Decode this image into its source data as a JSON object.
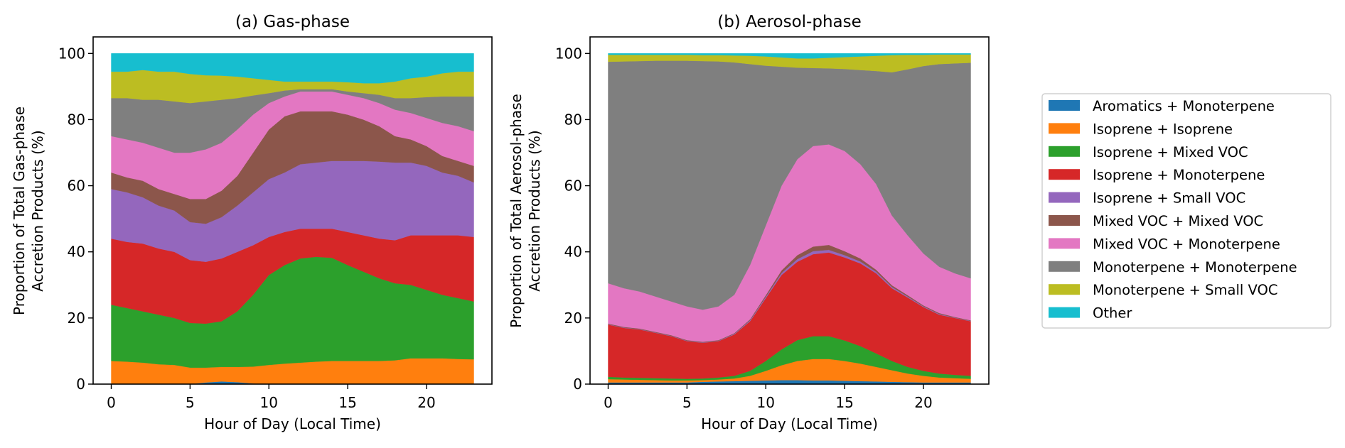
{
  "chart_data": [
    {
      "type": "area",
      "stacked": true,
      "title": "(a) Gas-phase",
      "xlabel": "Hour of Day (Local Time)",
      "ylabel": [
        "Proportion of Total Gas-phase",
        "Accretion Products (%)"
      ],
      "xlim": [
        -1.15,
        24.15
      ],
      "ylim": [
        0,
        105
      ],
      "xticks": [
        "0",
        "5",
        "10",
        "15",
        "20"
      ],
      "yticks": [
        "0",
        "20",
        "40",
        "60",
        "80",
        "100"
      ],
      "grid": false,
      "x": [
        0,
        1,
        2,
        3,
        4,
        5,
        6,
        7,
        8,
        9,
        10,
        11,
        12,
        13,
        14,
        15,
        16,
        17,
        18,
        19,
        20,
        21,
        22,
        23
      ],
      "series": [
        {
          "name": "Aromatics + Monoterpene",
          "values": [
            0,
            0,
            0,
            0,
            0,
            0,
            0.5,
            0.8,
            0.6,
            0.2,
            0,
            0,
            0,
            0,
            0,
            0,
            0,
            0,
            0,
            0,
            0,
            0,
            0,
            0
          ]
        },
        {
          "name": "Isoprene + Isoprene",
          "values": [
            7,
            6.8,
            6.5,
            6,
            5.8,
            5,
            4.5,
            4.4,
            4.6,
            5.1,
            5.8,
            6.2,
            6.5,
            6.8,
            7,
            7,
            7,
            7,
            7.2,
            7.8,
            7.8,
            7.8,
            7.6,
            7.5
          ]
        },
        {
          "name": "Isoprene + Mixed VOC",
          "values": [
            17,
            16.2,
            15.5,
            15,
            14.2,
            13.5,
            13.3,
            13.8,
            16.8,
            21.7,
            27.2,
            29.8,
            31.5,
            31.7,
            31.2,
            29,
            27,
            25,
            23.3,
            22.2,
            20.7,
            19.2,
            18.4,
            17.5
          ]
        },
        {
          "name": "Isoprene + Monoterpene",
          "values": [
            20,
            20,
            20.5,
            20,
            20,
            19,
            18.7,
            19,
            18,
            15,
            11.5,
            10,
            9,
            8.5,
            8.8,
            10,
            11,
            12,
            13,
            15,
            16.5,
            18,
            19,
            19.5
          ]
        },
        {
          "name": "Isoprene + Small VOC",
          "values": [
            15,
            15,
            14,
            13,
            12.5,
            11.5,
            11.5,
            12.5,
            14,
            16,
            17.5,
            18,
            19.5,
            20,
            20.5,
            21.5,
            22.5,
            23.3,
            23.5,
            22,
            21,
            19,
            18,
            16.5
          ]
        },
        {
          "name": "Mixed VOC + Mixed VOC",
          "values": [
            5,
            4.5,
            5,
            5,
            5,
            7,
            7.5,
            8,
            9,
            12,
            15,
            17,
            16,
            15.5,
            15,
            14,
            12.5,
            10.7,
            8,
            7,
            6,
            5,
            4.5,
            5
          ]
        },
        {
          "name": "Mixed VOC + Monoterpene",
          "values": [
            11,
            11.5,
            11.5,
            12.5,
            12.5,
            14,
            15,
            14.5,
            14,
            11.5,
            8,
            6,
            6,
            6,
            6,
            6,
            6.5,
            7,
            8,
            8,
            8.5,
            10,
            10.5,
            10.5
          ]
        },
        {
          "name": "Monoterpene + Monoterpene",
          "values": [
            11.5,
            12.5,
            13,
            14.5,
            15.5,
            15,
            14.5,
            13,
            9.5,
            5.8,
            3,
            1.8,
            0.7,
            0.7,
            0.7,
            1,
            1.5,
            2.5,
            3.5,
            4.5,
            6.3,
            8,
            9,
            10.5
          ]
        },
        {
          "name": "Monoterpene + Small VOC",
          "values": [
            8,
            8,
            9,
            8.5,
            9,
            8.8,
            7.9,
            7.3,
            6.5,
            5.2,
            4,
            2.7,
            2.3,
            2.3,
            2.3,
            2.8,
            3,
            3.5,
            5,
            6,
            6.2,
            7,
            7.5,
            7.5
          ]
        },
        {
          "name": "Other",
          "values": [
            5.5,
            5.5,
            5,
            5.5,
            5.5,
            6.2,
            6.6,
            6.7,
            7,
            7.5,
            8,
            8.5,
            8.5,
            8.5,
            8.5,
            8.7,
            9,
            9,
            8.5,
            7.5,
            7,
            6,
            5.5,
            5.5
          ]
        }
      ]
    },
    {
      "type": "area",
      "stacked": true,
      "title": "(b) Aerosol-phase",
      "xlabel": "Hour of Day (Local Time)",
      "ylabel": [
        "Proportion of Total Aerosol-phase",
        "Accretion Products (%)"
      ],
      "xlim": [
        -1.15,
        24.15
      ],
      "ylim": [
        0,
        105
      ],
      "xticks": [
        "0",
        "5",
        "10",
        "15",
        "20"
      ],
      "yticks": [
        "0",
        "20",
        "40",
        "60",
        "80",
        "100"
      ],
      "grid": false,
      "x": [
        0,
        1,
        2,
        3,
        4,
        5,
        6,
        7,
        8,
        9,
        10,
        11,
        12,
        13,
        14,
        15,
        16,
        17,
        18,
        19,
        20,
        21,
        22,
        23
      ],
      "series": [
        {
          "name": "Aromatics + Monoterpene",
          "values": [
            0.5,
            0.5,
            0.5,
            0.5,
            0.5,
            0.5,
            0.7,
            0.8,
            0.9,
            1,
            1.1,
            1.2,
            1.2,
            1.1,
            1.1,
            1,
            0.9,
            0.8,
            0.7,
            0.6,
            0.5,
            0.5,
            0.5,
            0.5
          ]
        },
        {
          "name": "Isoprene + Isoprene",
          "values": [
            1,
            0.9,
            0.8,
            0.7,
            0.6,
            0.6,
            0.5,
            0.6,
            0.8,
            1.5,
            2.9,
            4.5,
            5.8,
            6.5,
            6.5,
            6,
            5.3,
            4.4,
            3.5,
            2.6,
            2,
            1.5,
            1.3,
            1.1
          ]
        },
        {
          "name": "Isoprene + Mixed VOC",
          "values": [
            0.7,
            0.6,
            0.6,
            0.6,
            0.6,
            0.5,
            0.5,
            0.6,
            0.8,
            1.5,
            3,
            4.8,
            6.3,
            6.9,
            6.9,
            6.2,
            5.3,
            4.1,
            2.8,
            2,
            1.5,
            1.2,
            1,
            0.9
          ]
        },
        {
          "name": "Isoprene + Monoterpene",
          "values": [
            15.8,
            15,
            14.6,
            13.7,
            12.8,
            11.4,
            10.8,
            11,
            12.5,
            15,
            19,
            22.5,
            23.7,
            24.8,
            25.3,
            25.1,
            25,
            24.2,
            22,
            21,
            19.3,
            17.8,
            17.2,
            16.5
          ]
        },
        {
          "name": "Isoprene + Small VOC",
          "values": [
            0.1,
            0.1,
            0.1,
            0.1,
            0.1,
            0.1,
            0.1,
            0.1,
            0.2,
            0.3,
            0.4,
            0.6,
            0.8,
            0.9,
            0.8,
            0.7,
            0.6,
            0.5,
            0.4,
            0.3,
            0.2,
            0.2,
            0.1,
            0.1
          ]
        },
        {
          "name": "Mixed VOC + Mixed VOC",
          "values": [
            0.2,
            0.2,
            0.2,
            0.2,
            0.2,
            0.2,
            0.2,
            0.2,
            0.2,
            0.3,
            0.5,
            0.8,
            1.2,
            1.4,
            1.5,
            1.2,
            0.9,
            0.6,
            0.5,
            0.4,
            0.3,
            0.3,
            0.2,
            0.2
          ]
        },
        {
          "name": "Mixed VOC + Monoterpene",
          "values": [
            12.2,
            11.7,
            11.2,
            10.7,
            10.2,
            10.2,
            9.7,
            10.2,
            11.6,
            16.4,
            21.1,
            25.6,
            29,
            30.4,
            30.4,
            30.3,
            28.5,
            25.9,
            21.1,
            18.1,
            15.7,
            14,
            13.2,
            12.7
          ]
        },
        {
          "name": "Monoterpene + Monoterpene",
          "values": [
            67,
            68.6,
            69.7,
            71.3,
            72.8,
            74.3,
            75.2,
            74.1,
            70.3,
            60.8,
            48.3,
            36,
            27.7,
            23.6,
            23,
            24.8,
            28.5,
            34.2,
            43.3,
            50.2,
            56.7,
            61.3,
            63.5,
            65.2
          ]
        },
        {
          "name": "Monoterpene + Small VOC",
          "values": [
            2.1,
            2,
            1.9,
            1.8,
            1.8,
            1.8,
            1.8,
            1.9,
            2.1,
            2.5,
            2.8,
            2.8,
            2.8,
            2.9,
            3.2,
            3.6,
            4.1,
            4.6,
            5.2,
            4.4,
            3.4,
            2.9,
            2.7,
            2.5
          ]
        },
        {
          "name": "Other",
          "values": [
            0.4,
            0.4,
            0.4,
            0.4,
            0.4,
            0.4,
            0.5,
            0.5,
            0.6,
            0.7,
            0.9,
            1.2,
            1.5,
            1.5,
            1.3,
            1.1,
            0.9,
            0.7,
            0.5,
            0.4,
            0.4,
            0.3,
            0.3,
            0.3
          ]
        }
      ]
    }
  ],
  "legend": {
    "placement": "right",
    "items": [
      {
        "label": "Aromatics + Monoterpene",
        "color": "#1f77b4"
      },
      {
        "label": "Isoprene + Isoprene",
        "color": "#ff7f0e"
      },
      {
        "label": "Isoprene + Mixed VOC",
        "color": "#2ca02c"
      },
      {
        "label": "Isoprene + Monoterpene",
        "color": "#d62728"
      },
      {
        "label": "Isoprene + Small VOC",
        "color": "#9467bd"
      },
      {
        "label": "Mixed VOC + Mixed VOC",
        "color": "#8c564b"
      },
      {
        "label": "Mixed VOC + Monoterpene",
        "color": "#e377c2"
      },
      {
        "label": "Monoterpene + Monoterpene",
        "color": "#7f7f7f"
      },
      {
        "label": "Monoterpene + Small VOC",
        "color": "#bcbd22"
      },
      {
        "label": "Other",
        "color": "#17becf"
      }
    ]
  }
}
